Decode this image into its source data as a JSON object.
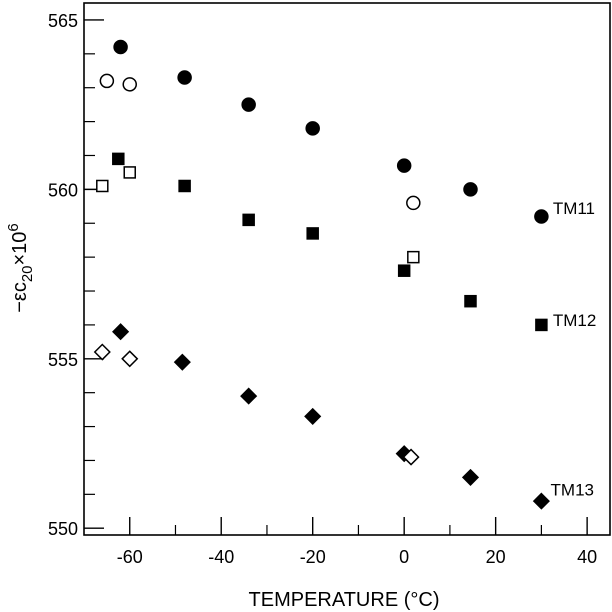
{
  "chart_data": {
    "type": "scatter",
    "xlabel": "TEMPERATURE (°C)",
    "ylabel_main": "−εc",
    "ylabel_sub": "20",
    "ylabel_tail": "×10",
    "ylabel_sup": "6",
    "xlim": [
      -70,
      45
    ],
    "ylim": [
      549.8,
      565.5
    ],
    "x_ticks": [
      -60,
      -40,
      -20,
      0,
      20,
      40
    ],
    "x_tick_labels": [
      "-60",
      "-40",
      "-20",
      "0",
      "20",
      "40"
    ],
    "y_major_ticks": [
      550,
      555,
      560,
      565
    ],
    "y_tick_labels": [
      "550",
      "555",
      "560",
      "565"
    ],
    "y_minor_ticks": [
      551,
      552,
      553,
      554,
      556,
      557,
      558,
      559,
      561,
      562,
      563,
      564
    ],
    "x_minor_ticks": [
      -50,
      -30,
      -10,
      10,
      30
    ],
    "grid": false,
    "series": [
      {
        "name": "TM11",
        "marker": "circle",
        "filled": true,
        "points": [
          [
            -62,
            564.2
          ],
          [
            -48,
            563.3
          ],
          [
            -34,
            562.5
          ],
          [
            -20,
            561.8
          ],
          [
            0,
            560.7
          ],
          [
            14.5,
            560.0
          ],
          [
            30,
            559.2
          ]
        ]
      },
      {
        "name": "",
        "marker": "circle",
        "filled": false,
        "points": [
          [
            -65,
            563.2
          ],
          [
            -60,
            563.1
          ],
          [
            2,
            559.6
          ]
        ]
      },
      {
        "name": "TM12",
        "marker": "square",
        "filled": true,
        "points": [
          [
            -62.5,
            560.9
          ],
          [
            -48,
            560.1
          ],
          [
            -34,
            559.1
          ],
          [
            -20,
            558.7
          ],
          [
            0,
            557.6
          ],
          [
            14.5,
            556.7
          ],
          [
            30,
            556.0
          ]
        ]
      },
      {
        "name": "",
        "marker": "square",
        "filled": false,
        "points": [
          [
            -66,
            560.1
          ],
          [
            -60,
            560.5
          ],
          [
            2,
            558.0
          ]
        ]
      },
      {
        "name": "TM13",
        "marker": "diamond",
        "filled": true,
        "points": [
          [
            -62,
            555.8
          ],
          [
            -48.5,
            554.9
          ],
          [
            -34,
            553.9
          ],
          [
            -20,
            553.3
          ],
          [
            0,
            552.2
          ],
          [
            14.5,
            551.5
          ],
          [
            30,
            550.8
          ]
        ]
      },
      {
        "name": "",
        "marker": "diamond",
        "filled": false,
        "points": [
          [
            -66,
            555.2
          ],
          [
            -60,
            555.0
          ],
          [
            1.5,
            552.1
          ]
        ]
      }
    ],
    "series_labels": [
      {
        "text": "TM11",
        "x": 32.5,
        "y": 559.45
      },
      {
        "text": "TM12",
        "x": 32.5,
        "y": 556.15
      },
      {
        "text": "TM13",
        "x": 32,
        "y": 551.15
      }
    ]
  }
}
